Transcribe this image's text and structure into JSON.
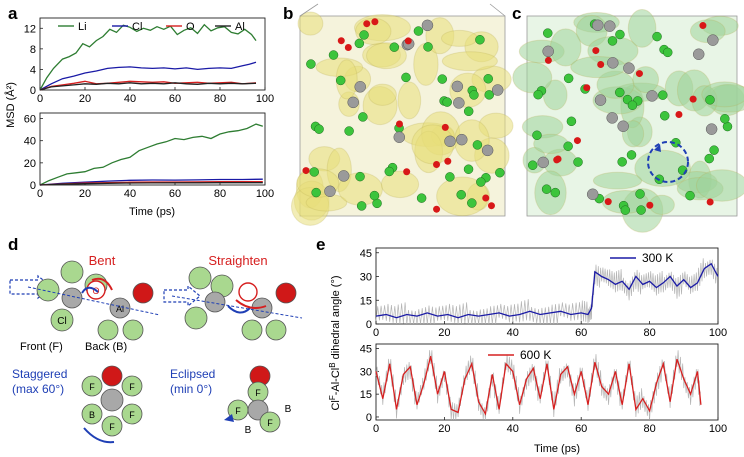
{
  "panel_letters": {
    "a": "a",
    "b": "b",
    "c": "c",
    "d": "d",
    "e": "e"
  },
  "colors": {
    "Li": "#2e7d32",
    "Cl": "#1a1aa6",
    "O": "#d62020",
    "Al": "#222222",
    "iso_yellow": "#e8df7a",
    "iso_green": "#9fd49a",
    "atom_green": "#3cc43c",
    "atom_red": "#d81818",
    "atom_gray": "#9a9a9a",
    "arrow_blue": "#1f3fb5",
    "raw_gray": "#b5b5b5"
  },
  "panel_d": {
    "bent_title": "Bent",
    "straighten_title": "Straighten",
    "atom_O": "O",
    "atom_Cl": "Cl",
    "atom_Al": "Al",
    "front_label": "Front (F)",
    "back_label": "Back (B)",
    "staggered_title": "Staggered",
    "staggered_note": "(max 60°)",
    "eclipsed_title": "Eclipsed",
    "eclipsed_note": "(min 0°)",
    "F": "F",
    "B": "B"
  },
  "chart_data": [
    {
      "id": "a-top",
      "type": "line",
      "ylabel": "MSD (Å²)",
      "xlim": [
        0,
        100
      ],
      "ylim": [
        0,
        14
      ],
      "xticks": [
        0,
        20,
        40,
        60,
        80,
        100
      ],
      "yticks": [
        0,
        4,
        8,
        12
      ],
      "legend_position": "top",
      "series": [
        {
          "name": "Li",
          "color": "#2e7d32",
          "x": [
            0,
            3,
            6,
            10,
            13,
            16,
            19,
            22,
            25,
            28,
            31,
            34,
            37,
            40,
            43,
            46,
            49,
            52,
            55,
            58,
            61,
            64,
            67,
            70,
            73,
            76,
            79,
            82,
            85,
            88,
            91,
            94,
            96
          ],
          "y": [
            0,
            2.4,
            4.2,
            6.0,
            6.5,
            7.2,
            9.0,
            8.4,
            9.6,
            10.4,
            11.8,
            11.2,
            12.6,
            12.2,
            11.4,
            12.0,
            11.6,
            12.3,
            11.8,
            12.4,
            10.8,
            11.6,
            12.1,
            11.0,
            12.7,
            11.5,
            12.1,
            12.3,
            11.2,
            10.9,
            11.8,
            10.8,
            9.6
          ]
        },
        {
          "name": "Cl",
          "color": "#1a1aa6",
          "x": [
            0,
            5,
            10,
            15,
            20,
            25,
            30,
            35,
            40,
            45,
            50,
            55,
            60,
            65,
            70,
            75,
            80,
            85,
            90,
            93,
            96
          ],
          "y": [
            0,
            1.2,
            2.2,
            2.7,
            3.3,
            3.7,
            4.2,
            4.4,
            4.5,
            4.3,
            4.2,
            4.3,
            4.1,
            4.3,
            4.0,
            4.2,
            4.3,
            4.2,
            4.7,
            5.0,
            5.4
          ]
        },
        {
          "name": "O",
          "color": "#d62020",
          "x": [
            0,
            5,
            10,
            15,
            20,
            25,
            30,
            35,
            40,
            45,
            50,
            55,
            60,
            65,
            70,
            75,
            80,
            85,
            90,
            96
          ],
          "y": [
            0,
            0.7,
            1.0,
            1.3,
            1.7,
            1.2,
            1.3,
            1.5,
            1.7,
            1.6,
            1.5,
            1.6,
            1.3,
            1.4,
            1.5,
            1.3,
            1.4,
            1.5,
            1.2,
            1.4
          ]
        },
        {
          "name": "Al",
          "color": "#222222",
          "x": [
            0,
            5,
            10,
            15,
            20,
            25,
            30,
            35,
            40,
            45,
            50,
            55,
            60,
            65,
            70,
            75,
            80,
            85,
            90,
            96
          ],
          "y": [
            0,
            0.6,
            0.8,
            1.0,
            1.2,
            1.1,
            1.3,
            1.2,
            1.4,
            1.2,
            1.3,
            1.2,
            1.4,
            1.2,
            1.1,
            1.3,
            1.2,
            1.3,
            1.2,
            1.3
          ]
        }
      ]
    },
    {
      "id": "a-bottom",
      "type": "line",
      "xlabel": "Time (ps)",
      "xlim": [
        0,
        100
      ],
      "ylim": [
        0,
        65
      ],
      "xticks": [
        0,
        20,
        40,
        60,
        80,
        100
      ],
      "yticks": [
        0,
        20,
        40,
        60
      ],
      "series": [
        {
          "name": "Li",
          "color": "#2e7d32",
          "x": [
            0,
            4,
            8,
            12,
            16,
            20,
            24,
            28,
            32,
            36,
            40,
            44,
            48,
            52,
            56,
            60,
            64,
            68,
            72,
            76,
            80,
            84,
            88,
            92,
            96,
            99
          ],
          "y": [
            0,
            4,
            7,
            10,
            11,
            12,
            15,
            16,
            20,
            23,
            25,
            31,
            34,
            37,
            39,
            42,
            41,
            43,
            44,
            42,
            46,
            48,
            49,
            51,
            55,
            53
          ]
        },
        {
          "name": "Cl",
          "color": "#1a1aa6",
          "x": [
            0,
            10,
            20,
            30,
            40,
            50,
            60,
            70,
            80,
            90,
            99
          ],
          "y": [
            0,
            1.5,
            2.5,
            3.5,
            4.2,
            4.5,
            4.4,
            4.6,
            5.0,
            5.0,
            5.2
          ]
        },
        {
          "name": "O",
          "color": "#d62020",
          "x": [
            0,
            10,
            20,
            30,
            40,
            50,
            60,
            70,
            80,
            90,
            99
          ],
          "y": [
            0,
            1,
            1.8,
            2.2,
            2.5,
            2.7,
            2.7,
            2.8,
            3.0,
            3.0,
            3.0
          ]
        },
        {
          "name": "Al",
          "color": "#222222",
          "x": [
            0,
            10,
            20,
            30,
            40,
            50,
            60,
            70,
            80,
            90,
            99
          ],
          "y": [
            0,
            0.8,
            1.2,
            1.5,
            1.8,
            1.9,
            2.0,
            2.0,
            2.1,
            2.1,
            2.1
          ]
        }
      ]
    },
    {
      "id": "e-top",
      "type": "line",
      "xlim": [
        0,
        100
      ],
      "ylim": [
        0,
        48
      ],
      "xticks": [
        0,
        20,
        40,
        60,
        80,
        100
      ],
      "yticks": [
        0,
        15,
        30,
        45
      ],
      "legend_position": "top-right",
      "series": [
        {
          "name": "300 K",
          "color": "#1a1aa6",
          "x": [
            0,
            3,
            6,
            9,
            12,
            15,
            18,
            21,
            24,
            27,
            30,
            33,
            36,
            39,
            42,
            45,
            48,
            51,
            54,
            57,
            60,
            62,
            63,
            64,
            66,
            68,
            70,
            72,
            74,
            76,
            78,
            80,
            82,
            84,
            86,
            88,
            90,
            92,
            94,
            96,
            98,
            100
          ],
          "y": [
            5,
            6,
            4,
            6,
            5,
            7,
            5,
            6,
            4,
            6,
            5,
            6,
            7,
            5,
            6,
            8,
            6,
            7,
            8,
            6,
            7,
            6,
            10,
            33,
            30,
            28,
            25,
            27,
            22,
            30,
            25,
            27,
            23,
            26,
            30,
            24,
            28,
            23,
            26,
            35,
            38,
            30
          ]
        }
      ]
    },
    {
      "id": "e-bottom",
      "type": "line",
      "xlabel": "Time (ps)",
      "ylabel": "Cl^F-Al-Cl^B dihedral angle (°)",
      "xlim": [
        0,
        100
      ],
      "ylim": [
        -2,
        48
      ],
      "xticks": [
        0,
        20,
        40,
        60,
        80,
        100
      ],
      "yticks": [
        0,
        15,
        30,
        45
      ],
      "legend_position": "top-center",
      "series": [
        {
          "name": "600 K",
          "color": "#d62020",
          "x": [
            0,
            2,
            4,
            6,
            8,
            10,
            12,
            14,
            16,
            18,
            20,
            22,
            24,
            26,
            28,
            30,
            32,
            34,
            36,
            38,
            40,
            42,
            44,
            46,
            48,
            50,
            52,
            54,
            56,
            58,
            60,
            62,
            64,
            66,
            68,
            70,
            72,
            74,
            76,
            78,
            80,
            82,
            84,
            86,
            88,
            90,
            92,
            94,
            95
          ],
          "y": [
            30,
            12,
            35,
            5,
            28,
            33,
            8,
            22,
            40,
            15,
            30,
            5,
            3,
            25,
            35,
            10,
            2,
            28,
            5,
            35,
            30,
            8,
            25,
            32,
            12,
            35,
            5,
            28,
            33,
            15,
            30,
            8,
            36,
            20,
            15,
            30,
            8,
            35,
            5,
            12,
            4,
            22,
            35,
            10,
            38,
            25,
            15,
            30,
            8
          ]
        }
      ]
    }
  ],
  "axes_text": {
    "a_xlabel": "Time (ps)",
    "a_ylabel": "MSD (Å²)",
    "e_xlabel": "Time (ps)",
    "e_ylabel": "Cl",
    "e_ylabel_sup1": "F",
    "e_ylabel_mid": "-Al-Cl",
    "e_ylabel_sup2": "B",
    "e_ylabel_end": " dihedral angle (°)"
  }
}
